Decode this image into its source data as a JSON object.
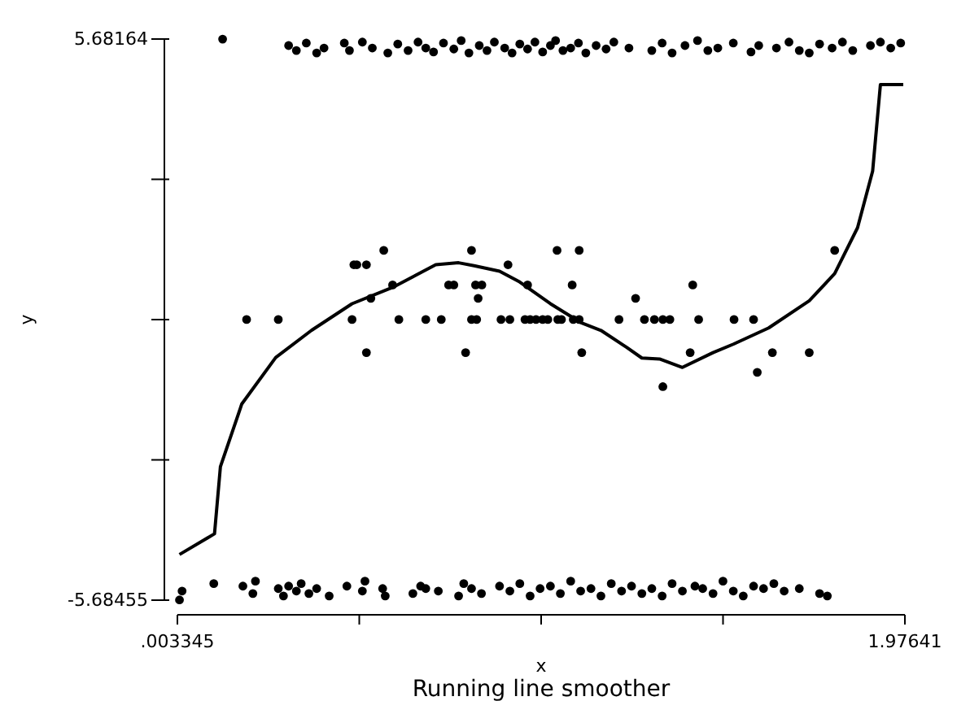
{
  "chart_data": {
    "type": "scatter",
    "title": "Running line smoother",
    "xlabel": "x",
    "ylabel": "y",
    "xlim": [
      0.003345,
      1.97641
    ],
    "ylim": [
      -5.68455,
      5.68164
    ],
    "xticks": [
      {
        "value": 0.003345,
        "label": ".003345"
      },
      {
        "value": 0.49661,
        "label": null
      },
      {
        "value": 0.98988,
        "label": null
      },
      {
        "value": 1.48314,
        "label": null
      },
      1.97641
    ],
    "yticks": [
      -5.68455,
      {
        "value": -2.843,
        "label": null
      },
      {
        "value": -0.00145,
        "label": null
      },
      {
        "value": 2.8401,
        "label": null
      },
      5.68164
    ],
    "grid": false,
    "marker": "circle",
    "series": [
      {
        "color": "#000000",
        "x": [
          0.126,
          0.305,
          0.326,
          0.353,
          0.381,
          0.401,
          0.456,
          0.47,
          0.505,
          0.532,
          0.574,
          0.601,
          0.629,
          0.656,
          0.677,
          0.698,
          0.725,
          0.753,
          0.773,
          0.794,
          0.822,
          0.843,
          0.863,
          0.891,
          0.911,
          0.932,
          0.953,
          0.973,
          0.994,
          1.015,
          1.029,
          1.049,
          1.07,
          1.091,
          1.111,
          1.139,
          1.166,
          1.187,
          1.228,
          1.29,
          1.318,
          1.345,
          1.38,
          1.414,
          1.442,
          1.469,
          1.511,
          1.559,
          1.58,
          1.628,
          1.662,
          1.69,
          1.717,
          1.745,
          1.779,
          1.807,
          1.835,
          1.883,
          1.91,
          1.938,
          1.965,
          0.563,
          0.801,
          1.033,
          1.093,
          1.786,
          0.482,
          0.49,
          0.516,
          0.9,
          0.587,
          0.739,
          0.753,
          0.812,
          0.829,
          0.953,
          1.074,
          1.401,
          0.528,
          0.819,
          1.246,
          0.191,
          0.277,
          0.477,
          0.604,
          0.677,
          0.719,
          0.801,
          0.815,
          0.881,
          0.905,
          0.946,
          0.96,
          0.976,
          0.994,
          1.008,
          1.035,
          1.045,
          1.077,
          1.093,
          1.201,
          1.27,
          1.297,
          1.32,
          1.339,
          1.417,
          1.513,
          1.566,
          0.516,
          0.785,
          1.1,
          1.394,
          1.617,
          1.717,
          1.576,
          1.32,
          0.009,
          0.016,
          0.102,
          0.181,
          0.208,
          0.215,
          0.277,
          0.291,
          0.305,
          0.326,
          0.339,
          0.36,
          0.381,
          0.415,
          0.463,
          0.505,
          0.512,
          0.56,
          0.567,
          0.642,
          0.663,
          0.677,
          0.711,
          0.766,
          0.78,
          0.801,
          0.828,
          0.877,
          0.905,
          0.932,
          0.96,
          0.987,
          1.015,
          1.042,
          1.07,
          1.097,
          1.125,
          1.152,
          1.18,
          1.208,
          1.235,
          1.263,
          1.29,
          1.318,
          1.345,
          1.373,
          1.407,
          1.428,
          1.456,
          1.483,
          1.511,
          1.538,
          1.566,
          1.593,
          1.621,
          1.649,
          1.69,
          1.745,
          1.766
        ],
        "values": [
          5.68,
          5.55,
          5.45,
          5.6,
          5.4,
          5.5,
          5.6,
          5.45,
          5.62,
          5.5,
          5.4,
          5.58,
          5.45,
          5.62,
          5.5,
          5.42,
          5.6,
          5.48,
          5.65,
          5.4,
          5.55,
          5.45,
          5.62,
          5.5,
          5.4,
          5.58,
          5.48,
          5.62,
          5.42,
          5.55,
          5.65,
          5.45,
          5.5,
          5.6,
          5.4,
          5.55,
          5.48,
          5.62,
          5.5,
          5.45,
          5.6,
          5.4,
          5.55,
          5.65,
          5.45,
          5.5,
          5.6,
          5.42,
          5.55,
          5.5,
          5.62,
          5.45,
          5.4,
          5.58,
          5.5,
          5.62,
          5.45,
          5.55,
          5.62,
          5.5,
          5.6,
          1.4,
          1.4,
          1.4,
          1.4,
          1.4,
          1.11,
          1.11,
          1.11,
          1.11,
          0.7,
          0.7,
          0.7,
          0.7,
          0.7,
          0.7,
          0.7,
          0.7,
          0.43,
          0.43,
          0.43,
          0,
          0,
          0,
          0,
          0,
          0,
          0,
          0,
          0,
          0,
          0,
          0,
          0,
          0,
          0,
          0,
          0,
          0,
          0,
          0,
          0,
          0,
          0,
          0,
          0,
          0,
          0,
          -0.67,
          -0.67,
          -0.67,
          -0.67,
          -0.67,
          -0.67,
          -1.07,
          -1.36,
          -5.68,
          -5.5,
          -5.35,
          -5.4,
          -5.55,
          -5.3,
          -5.45,
          -5.6,
          -5.4,
          -5.5,
          -5.35,
          -5.55,
          -5.45,
          -5.6,
          -5.4,
          -5.5,
          -5.3,
          -5.45,
          -5.6,
          -5.55,
          -5.4,
          -5.45,
          -5.5,
          -5.6,
          -5.35,
          -5.45,
          -5.55,
          -5.4,
          -5.5,
          -5.35,
          -5.6,
          -5.45,
          -5.4,
          -5.55,
          -5.3,
          -5.5,
          -5.45,
          -5.6,
          -5.35,
          -5.5,
          -5.4,
          -5.55,
          -5.45,
          -5.6,
          -5.35,
          -5.5,
          -5.4,
          -5.45,
          -5.55,
          -5.3,
          -5.5,
          -5.6,
          -5.4,
          -5.45,
          -5.35,
          -5.5,
          -5.45,
          -5.55,
          -5.6
        ]
      },
      {
        "type": "line",
        "color": "#000000",
        "marker": "none",
        "line_style": "solid",
        "x": [
          0.009,
          0.104,
          0.12,
          0.174,
          0.178,
          0.27,
          0.367,
          0.477,
          0.587,
          0.704,
          0.766,
          0.808,
          0.877,
          0.932,
          1.015,
          1.097,
          1.152,
          1.221,
          1.263,
          1.311,
          1.373,
          1.456,
          1.511,
          1.607,
          1.717,
          1.786,
          1.848,
          1.889,
          1.91,
          1.972
        ],
        "values": [
          -4.76,
          -4.34,
          -2.98,
          -1.8,
          -1.71,
          -0.77,
          -0.22,
          0.32,
          0.65,
          1.11,
          1.15,
          1.09,
          0.98,
          0.76,
          0.32,
          -0.06,
          -0.22,
          -0.56,
          -0.78,
          -0.8,
          -0.97,
          -0.67,
          -0.5,
          -0.17,
          0.38,
          0.93,
          1.86,
          3.01,
          4.76,
          4.76
        ]
      }
    ]
  }
}
